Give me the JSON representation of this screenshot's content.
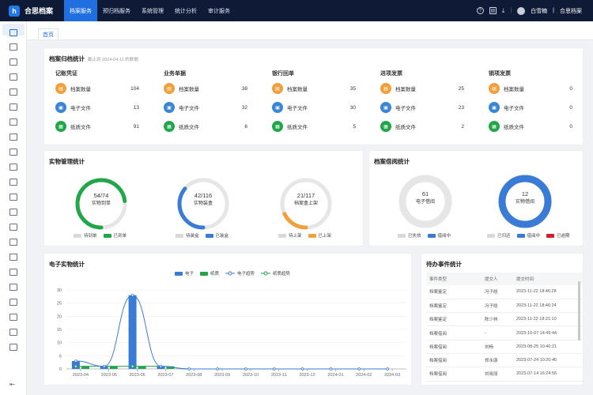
{
  "app": {
    "brand": "合思档案",
    "brand_sep": "|"
  },
  "nav": [
    "档案服务",
    "预归档服务",
    "系统管理",
    "统计分析",
    "审计服务"
  ],
  "user": {
    "name": "白雪楠",
    "org": "合思档案",
    "separator": "|"
  },
  "tabs": [
    "首页"
  ],
  "archive_stats": {
    "title": "档案归档统计",
    "subtitle": "截止到 2024-04-11 的数据",
    "columns": [
      {
        "title": "记账凭证",
        "rows": [
          {
            "label": "档案数量",
            "value": "104"
          },
          {
            "label": "电子文件",
            "value": "13"
          },
          {
            "label": "纸质文件",
            "value": "91"
          }
        ]
      },
      {
        "title": "业务单据",
        "rows": [
          {
            "label": "档案数量",
            "value": "38"
          },
          {
            "label": "电子文件",
            "value": "32"
          },
          {
            "label": "纸质文件",
            "value": "6"
          }
        ]
      },
      {
        "title": "银行回单",
        "rows": [
          {
            "label": "档案数量",
            "value": "35"
          },
          {
            "label": "电子文件",
            "value": "30"
          },
          {
            "label": "纸质文件",
            "value": "5"
          }
        ]
      },
      {
        "title": "进项发票",
        "rows": [
          {
            "label": "档案数量",
            "value": "25"
          },
          {
            "label": "电子文件",
            "value": "23"
          },
          {
            "label": "纸质文件",
            "value": "2"
          }
        ]
      },
      {
        "title": "销项发票",
        "rows": [
          {
            "label": "档案数量",
            "value": "0"
          },
          {
            "label": "电子文件",
            "value": "0"
          },
          {
            "label": "纸质文件",
            "value": "0"
          }
        ]
      }
    ],
    "row_colors": [
      "#f0a03c",
      "#3a86d6",
      "#22a64a"
    ]
  },
  "physical": {
    "title": "实物管理统计",
    "gauges": [
      {
        "value": "54/74",
        "label": "实物到单",
        "fraction": 0.73,
        "color": "#22a64a",
        "legend": [
          "待到单",
          "已到单"
        ]
      },
      {
        "value": "42/116",
        "label": "实物装盒",
        "fraction": 0.36,
        "color": "#3a7bd5",
        "legend": [
          "待装盒",
          "已装盒"
        ]
      },
      {
        "value": "21/117",
        "label": "档案盒上架",
        "fraction": 0.18,
        "color": "#f0a03c",
        "legend": [
          "待上架",
          "已上架"
        ]
      }
    ]
  },
  "borrow": {
    "title": "档案借阅统计",
    "donuts": [
      {
        "value": "61",
        "label": "电子借阅",
        "fraction": 0,
        "color": "#3a7bd5",
        "legend": [
          {
            "label": "已失效",
            "color": "#d9d9d9"
          },
          {
            "label": "借阅中",
            "color": "#3a7bd5"
          }
        ]
      },
      {
        "value": "12",
        "label": "实物借阅",
        "fraction": 1,
        "color": "#3a7bd5",
        "legend": [
          {
            "label": "已归还",
            "color": "#d9d9d9"
          },
          {
            "label": "借阅中",
            "color": "#3a7bd5"
          },
          {
            "label": "已逾期",
            "color": "#d0202e"
          }
        ]
      }
    ]
  },
  "electronic": {
    "title": "电子实物统计",
    "legend": [
      "电子",
      "纸质",
      "电子趋势",
      "纸质趋势"
    ]
  },
  "chart_data": {
    "type": "bar",
    "categories": [
      "2023-04",
      "2023-05",
      "2023-06",
      "2023-07",
      "2023-08",
      "2023-09",
      "2023-10",
      "2023-11",
      "2023-12",
      "2024-01",
      "2024-02",
      "2024-03"
    ],
    "series": [
      {
        "name": "电子",
        "values": [
          3,
          1,
          28,
          1,
          0,
          0,
          0,
          0,
          0,
          0,
          0,
          0
        ]
      },
      {
        "name": "纸质",
        "values": [
          1,
          1,
          1,
          1,
          0,
          0,
          0,
          0,
          0,
          0,
          0,
          0
        ]
      },
      {
        "name": "电子趋势",
        "values": [
          3,
          1,
          28,
          1,
          0,
          0,
          0,
          0,
          0,
          0,
          0,
          0
        ]
      },
      {
        "name": "纸质趋势",
        "values": [
          1,
          1,
          1,
          1,
          0,
          0,
          0,
          0,
          0,
          0,
          0,
          0
        ]
      }
    ],
    "yticks": [
      0,
      5,
      10,
      15,
      20,
      25,
      30
    ],
    "ylim": [
      0,
      30
    ],
    "colors": {
      "电子": "#3a7bd5",
      "纸质": "#22a64a",
      "电子趋势": "#3a7bd5",
      "纸质趋势": "#22a64a"
    }
  },
  "todo": {
    "title": "待办事件统计",
    "headers": [
      "事件类型",
      "提交人",
      "提交时间"
    ],
    "rows": [
      [
        "档案鉴定",
        "冯子晗",
        "2023-11-22 18:46:28"
      ],
      [
        "档案鉴定",
        "冯子晗",
        "2023-11-22 18:46:24"
      ],
      [
        "档案鉴定",
        "陈少林",
        "2023-11-22 18:21:10"
      ],
      [
        "档案借阅",
        "-",
        "2023-10-07 14:49:44"
      ],
      [
        "档案借阅",
        "刘畅",
        "2023-08-25 10:40:21"
      ],
      [
        "档案借阅",
        "郑永康",
        "2023-07-24 10:20:46"
      ],
      [
        "档案借阅",
        "刘晓丽",
        "2023-07-14 16:24:56"
      ]
    ]
  }
}
